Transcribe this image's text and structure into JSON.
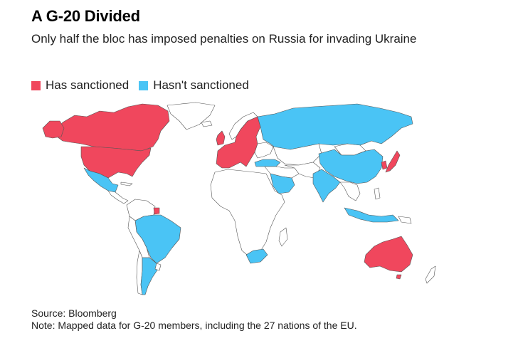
{
  "title": "A G-20 Divided",
  "subtitle": "Only half the bloc has imposed penalties on Russia for invading Ukraine",
  "legend": [
    {
      "label": "Has sanctioned",
      "color": "#f0475d"
    },
    {
      "label": "Hasn't sanctioned",
      "color": "#4ac4f5"
    }
  ],
  "colors": {
    "sanctioned": "#f0475d",
    "not_sanctioned": "#4ac4f5",
    "other": "#ffffff",
    "border": "#555555"
  },
  "footer": {
    "source": "Source: Bloomberg",
    "note": "Note: Mapped data for G-20 members, including the 27 nations of the EU."
  },
  "map_data": {
    "sanctioned": [
      "United States",
      "Canada",
      "United Kingdom",
      "European Union",
      "Japan",
      "Australia",
      "South Korea"
    ],
    "not_sanctioned": [
      "Russia",
      "China",
      "India",
      "Brazil",
      "Mexico",
      "Argentina",
      "South Africa",
      "Saudi Arabia",
      "Turkey",
      "Indonesia"
    ]
  }
}
